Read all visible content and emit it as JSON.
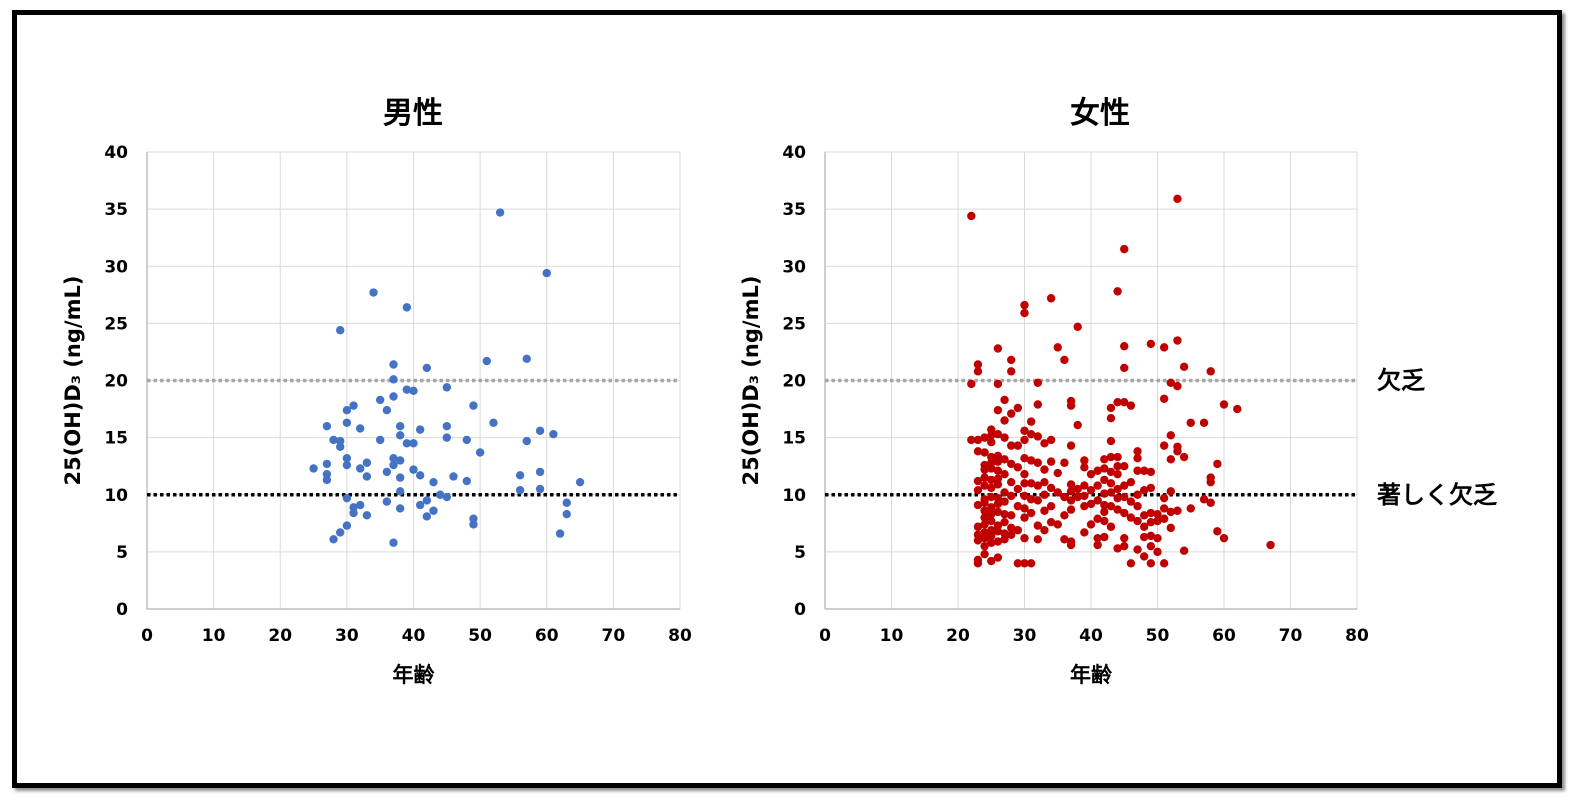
{
  "chart_data": [
    {
      "type": "scatter",
      "title": "男性",
      "xlabel": "年齢",
      "ylabel": "25(OH)D₃ (ng/mL)",
      "xlim": [
        0,
        80
      ],
      "ylim": [
        0,
        40
      ],
      "xticks": [
        "0",
        "10",
        "20",
        "30",
        "40",
        "50",
        "60",
        "70",
        "80"
      ],
      "yticks": [
        "0",
        "5",
        "10",
        "15",
        "20",
        "25",
        "30",
        "35",
        "40"
      ],
      "grid": true,
      "color": "#4472C4",
      "reference_lines": [
        {
          "y": 20,
          "color": "#A6A6A6",
          "style": "dotted"
        },
        {
          "y": 10,
          "color": "#000000",
          "style": "dotted"
        }
      ],
      "points": [
        [
          25,
          12.3
        ],
        [
          27,
          12.7
        ],
        [
          27,
          11.8
        ],
        [
          27,
          11.3
        ],
        [
          27,
          16
        ],
        [
          28,
          6.1
        ],
        [
          28,
          14.8
        ],
        [
          29,
          24.4
        ],
        [
          29,
          14.7
        ],
        [
          29,
          14.2
        ],
        [
          29,
          6.7
        ],
        [
          30,
          17.4
        ],
        [
          30,
          16.3
        ],
        [
          30,
          13.2
        ],
        [
          30,
          12.6
        ],
        [
          30,
          9.7
        ],
        [
          30,
          7.3
        ],
        [
          31,
          17.8
        ],
        [
          31,
          8.9
        ],
        [
          31,
          8.4
        ],
        [
          32,
          15.8
        ],
        [
          32,
          12.3
        ],
        [
          32,
          9.1
        ],
        [
          33,
          12.8
        ],
        [
          33,
          11.6
        ],
        [
          33,
          8.2
        ],
        [
          34,
          27.7
        ],
        [
          35,
          18.3
        ],
        [
          35,
          14.8
        ],
        [
          36,
          17.4
        ],
        [
          36,
          12
        ],
        [
          36,
          9.4
        ],
        [
          37,
          21.4
        ],
        [
          37,
          20.1
        ],
        [
          37,
          18.6
        ],
        [
          37,
          13.2
        ],
        [
          37,
          12.6
        ],
        [
          37,
          5.8
        ],
        [
          38,
          16
        ],
        [
          38,
          15.2
        ],
        [
          38,
          13
        ],
        [
          38,
          11.5
        ],
        [
          38,
          10.3
        ],
        [
          38,
          8.8
        ],
        [
          39,
          26.4
        ],
        [
          39,
          19.2
        ],
        [
          39,
          14.5
        ],
        [
          40,
          19.1
        ],
        [
          40,
          14.5
        ],
        [
          40,
          12.2
        ],
        [
          41,
          15.7
        ],
        [
          41,
          11.7
        ],
        [
          41,
          9.1
        ],
        [
          42,
          21.1
        ],
        [
          42,
          9.5
        ],
        [
          42,
          8.1
        ],
        [
          43,
          11.1
        ],
        [
          43,
          8.6
        ],
        [
          44,
          10
        ],
        [
          45,
          19.4
        ],
        [
          45,
          16
        ],
        [
          45,
          15
        ],
        [
          45,
          9.8
        ],
        [
          46,
          11.6
        ],
        [
          48,
          14.8
        ],
        [
          48,
          11.2
        ],
        [
          49,
          17.8
        ],
        [
          49,
          7.9
        ],
        [
          49,
          7.4
        ],
        [
          50,
          13.7
        ],
        [
          51,
          21.7
        ],
        [
          52,
          16.3
        ],
        [
          53,
          34.7
        ],
        [
          56,
          11.7
        ],
        [
          56,
          10.4
        ],
        [
          57,
          21.9
        ],
        [
          57,
          14.7
        ],
        [
          59,
          15.6
        ],
        [
          59,
          12
        ],
        [
          59,
          10.5
        ],
        [
          60,
          29.4
        ],
        [
          61,
          15.3
        ],
        [
          62,
          6.6
        ],
        [
          63,
          9.3
        ],
        [
          63,
          8.3
        ],
        [
          65,
          11.1
        ]
      ]
    },
    {
      "type": "scatter",
      "title": "女性",
      "xlabel": "年齢",
      "ylabel": "25(OH)D₃ (ng/mL)",
      "xlim": [
        0,
        80
      ],
      "ylim": [
        0,
        40
      ],
      "xticks": [
        "0",
        "10",
        "20",
        "30",
        "40",
        "50",
        "60",
        "70",
        "80"
      ],
      "yticks": [
        "0",
        "5",
        "10",
        "15",
        "20",
        "25",
        "30",
        "35",
        "40"
      ],
      "grid": true,
      "color": "#C00000",
      "reference_lines": [
        {
          "y": 20,
          "color": "#A6A6A6",
          "style": "dotted",
          "label": "欠乏"
        },
        {
          "y": 10,
          "color": "#000000",
          "style": "dotted",
          "label": "著しく欠乏"
        }
      ],
      "points": [
        [
          22,
          34.4
        ],
        [
          22,
          19.7
        ],
        [
          22,
          14.8
        ],
        [
          23,
          21.4
        ],
        [
          23,
          20.8
        ],
        [
          23,
          14.8
        ],
        [
          23,
          13.8
        ],
        [
          23,
          11.2
        ],
        [
          23,
          10.4
        ],
        [
          23,
          9.1
        ],
        [
          23,
          7.2
        ],
        [
          23,
          6.5
        ],
        [
          23,
          6
        ],
        [
          23,
          4.3
        ],
        [
          23,
          4
        ],
        [
          24,
          15
        ],
        [
          24,
          13.7
        ],
        [
          24,
          12.6
        ],
        [
          24,
          12.2
        ],
        [
          24,
          11.5
        ],
        [
          24,
          10.8
        ],
        [
          24,
          9.6
        ],
        [
          24,
          9.3
        ],
        [
          24,
          8.6
        ],
        [
          24,
          8
        ],
        [
          24,
          7.4
        ],
        [
          24,
          6.7
        ],
        [
          24,
          6.2
        ],
        [
          24,
          5.5
        ],
        [
          24,
          4.8
        ],
        [
          25,
          15.7
        ],
        [
          25,
          15.2
        ],
        [
          25,
          14.6
        ],
        [
          25,
          13.3
        ],
        [
          25,
          12.8
        ],
        [
          25,
          12.3
        ],
        [
          25,
          11.3
        ],
        [
          25,
          10.6
        ],
        [
          25,
          9.8
        ],
        [
          25,
          8.9
        ],
        [
          25,
          8.3
        ],
        [
          25,
          7.7
        ],
        [
          25,
          6.9
        ],
        [
          25,
          6.4
        ],
        [
          25,
          5.8
        ],
        [
          25,
          4.2
        ],
        [
          26,
          22.8
        ],
        [
          26,
          19.7
        ],
        [
          26,
          17.4
        ],
        [
          26,
          15.3
        ],
        [
          26,
          13.4
        ],
        [
          26,
          12.9
        ],
        [
          26,
          12.1
        ],
        [
          26,
          11.4
        ],
        [
          26,
          10.9
        ],
        [
          26,
          9.7
        ],
        [
          26,
          9.2
        ],
        [
          26,
          8.5
        ],
        [
          26,
          7.3
        ],
        [
          26,
          6.8
        ],
        [
          26,
          5.9
        ],
        [
          26,
          4.5
        ],
        [
          27,
          18.3
        ],
        [
          27,
          16.5
        ],
        [
          27,
          15
        ],
        [
          27,
          13.1
        ],
        [
          27,
          11.8
        ],
        [
          27,
          10.2
        ],
        [
          27,
          9.4
        ],
        [
          27,
          8.3
        ],
        [
          27,
          7.6
        ],
        [
          27,
          6.6
        ],
        [
          27,
          6.1
        ],
        [
          28,
          21.8
        ],
        [
          28,
          20.8
        ],
        [
          28,
          17.1
        ],
        [
          28,
          14.3
        ],
        [
          28,
          12.7
        ],
        [
          28,
          11.1
        ],
        [
          28,
          9.9
        ],
        [
          28,
          8.2
        ],
        [
          28,
          7.1
        ],
        [
          28,
          6.5
        ],
        [
          29,
          17.6
        ],
        [
          29,
          14.3
        ],
        [
          29,
          12.4
        ],
        [
          29,
          10.5
        ],
        [
          29,
          9
        ],
        [
          29,
          6.9
        ],
        [
          29,
          4
        ],
        [
          30,
          26.6
        ],
        [
          30,
          25.9
        ],
        [
          30,
          15.6
        ],
        [
          30,
          14.8
        ],
        [
          30,
          13.2
        ],
        [
          30,
          11.8
        ],
        [
          30,
          11
        ],
        [
          30,
          9.9
        ],
        [
          30,
          8.8
        ],
        [
          30,
          8
        ],
        [
          30,
          6.2
        ],
        [
          30,
          4
        ],
        [
          31,
          16.4
        ],
        [
          31,
          15.3
        ],
        [
          31,
          13
        ],
        [
          31,
          11
        ],
        [
          31,
          9.6
        ],
        [
          31,
          8.4
        ],
        [
          31,
          4
        ],
        [
          32,
          19.8
        ],
        [
          32,
          17.9
        ],
        [
          32,
          15.1
        ],
        [
          32,
          12.8
        ],
        [
          32,
          10.8
        ],
        [
          32,
          9.5
        ],
        [
          32,
          7.3
        ],
        [
          32,
          6.1
        ],
        [
          33,
          14.5
        ],
        [
          33,
          12.2
        ],
        [
          33,
          11.1
        ],
        [
          33,
          10
        ],
        [
          33,
          8.6
        ],
        [
          33,
          6.9
        ],
        [
          34,
          27.2
        ],
        [
          34,
          14.8
        ],
        [
          34,
          12.9
        ],
        [
          34,
          10.6
        ],
        [
          34,
          9
        ],
        [
          34,
          7.6
        ],
        [
          35,
          22.9
        ],
        [
          35,
          11.9
        ],
        [
          35,
          10.2
        ],
        [
          35,
          7.4
        ],
        [
          36,
          21.8
        ],
        [
          36,
          12.8
        ],
        [
          36,
          9.8
        ],
        [
          36,
          8.2
        ],
        [
          36,
          6.1
        ],
        [
          37,
          18.2
        ],
        [
          37,
          17.8
        ],
        [
          37,
          14.3
        ],
        [
          37,
          10.9
        ],
        [
          37,
          10.3
        ],
        [
          37,
          9.5
        ],
        [
          37,
          8.7
        ],
        [
          37,
          5.9
        ],
        [
          37,
          5.6
        ],
        [
          38,
          24.7
        ],
        [
          38,
          16.1
        ],
        [
          38,
          10.5
        ],
        [
          38,
          9.8
        ],
        [
          39,
          13
        ],
        [
          39,
          12.4
        ],
        [
          39,
          10.8
        ],
        [
          39,
          9.9
        ],
        [
          39,
          9
        ],
        [
          39,
          6.7
        ],
        [
          40,
          11.8
        ],
        [
          40,
          10.4
        ],
        [
          40,
          9.2
        ],
        [
          40,
          7.4
        ],
        [
          41,
          12.1
        ],
        [
          41,
          10.8
        ],
        [
          41,
          9.5
        ],
        [
          41,
          7.9
        ],
        [
          41,
          6.2
        ],
        [
          41,
          5.6
        ],
        [
          42,
          13.1
        ],
        [
          42,
          12.3
        ],
        [
          42,
          11.3
        ],
        [
          42,
          10.1
        ],
        [
          42,
          9.1
        ],
        [
          42,
          8.5
        ],
        [
          42,
          7.7
        ],
        [
          42,
          6.3
        ],
        [
          43,
          17.6
        ],
        [
          43,
          16.7
        ],
        [
          43,
          14.7
        ],
        [
          43,
          13.3
        ],
        [
          43,
          12
        ],
        [
          43,
          11
        ],
        [
          43,
          10.2
        ],
        [
          43,
          9
        ],
        [
          43,
          7.2
        ],
        [
          44,
          27.8
        ],
        [
          44,
          18.1
        ],
        [
          44,
          13.3
        ],
        [
          44,
          12.5
        ],
        [
          44,
          11.8
        ],
        [
          44,
          10.5
        ],
        [
          44,
          9.7
        ],
        [
          44,
          8.7
        ],
        [
          44,
          5.3
        ],
        [
          45,
          31.5
        ],
        [
          45,
          23
        ],
        [
          45,
          21.1
        ],
        [
          45,
          18.1
        ],
        [
          45,
          12.5
        ],
        [
          45,
          10.8
        ],
        [
          45,
          9.8
        ],
        [
          45,
          8.4
        ],
        [
          45,
          6.2
        ],
        [
          45,
          5.5
        ],
        [
          46,
          17.8
        ],
        [
          46,
          11.1
        ],
        [
          46,
          9.4
        ],
        [
          46,
          8
        ],
        [
          46,
          4
        ],
        [
          47,
          13.8
        ],
        [
          47,
          13.2
        ],
        [
          47,
          12.1
        ],
        [
          47,
          10
        ],
        [
          47,
          9
        ],
        [
          47,
          7.7
        ],
        [
          47,
          5.2
        ],
        [
          48,
          12.1
        ],
        [
          48,
          10.4
        ],
        [
          48,
          8.2
        ],
        [
          48,
          7.2
        ],
        [
          48,
          6.3
        ],
        [
          48,
          4.6
        ],
        [
          49,
          23.2
        ],
        [
          49,
          12
        ],
        [
          49,
          10.6
        ],
        [
          49,
          8.4
        ],
        [
          49,
          7.6
        ],
        [
          49,
          6.4
        ],
        [
          49,
          5.5
        ],
        [
          49,
          4
        ],
        [
          50,
          8.3
        ],
        [
          50,
          7.7
        ],
        [
          50,
          6.2
        ],
        [
          50,
          5
        ],
        [
          51,
          22.9
        ],
        [
          51,
          18.4
        ],
        [
          51,
          14.3
        ],
        [
          51,
          9.7
        ],
        [
          51,
          8.8
        ],
        [
          51,
          7.9
        ],
        [
          51,
          4
        ],
        [
          52,
          19.8
        ],
        [
          52,
          15.2
        ],
        [
          52,
          13.1
        ],
        [
          52,
          10.3
        ],
        [
          52,
          8.5
        ],
        [
          52,
          7.1
        ],
        [
          53,
          35.9
        ],
        [
          53,
          23.5
        ],
        [
          53,
          19.5
        ],
        [
          53,
          14.2
        ],
        [
          53,
          13.8
        ],
        [
          53,
          8.6
        ],
        [
          54,
          21.2
        ],
        [
          54,
          13.3
        ],
        [
          54,
          5.1
        ],
        [
          55,
          16.3
        ],
        [
          55,
          8.8
        ],
        [
          57,
          16.3
        ],
        [
          57,
          9.6
        ],
        [
          58,
          20.8
        ],
        [
          58,
          11.5
        ],
        [
          58,
          11.1
        ],
        [
          58,
          9.3
        ],
        [
          59,
          12.7
        ],
        [
          59,
          6.8
        ],
        [
          60,
          17.9
        ],
        [
          60,
          6.2
        ],
        [
          62,
          17.5
        ],
        [
          67,
          5.6
        ]
      ]
    }
  ]
}
